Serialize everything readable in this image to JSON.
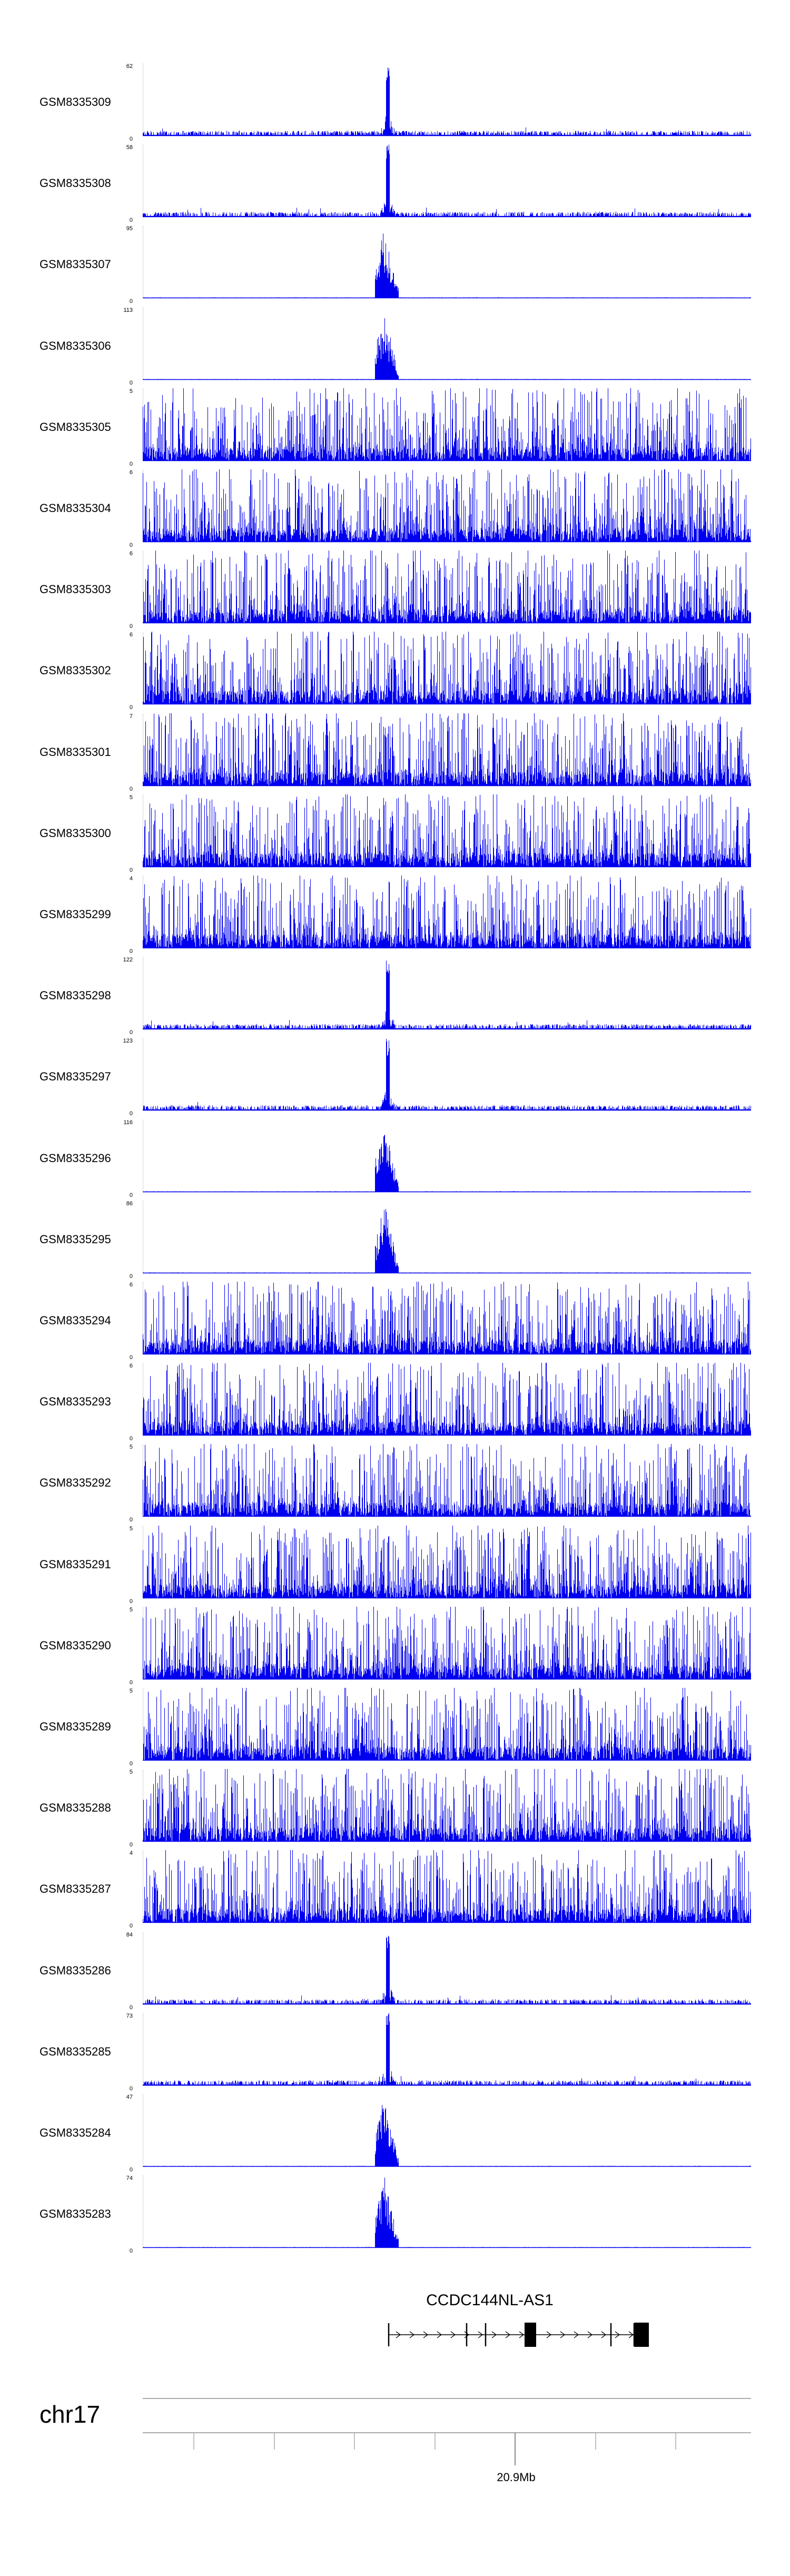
{
  "chart_data": {
    "type": "area",
    "title": "",
    "chromosome": "chr17",
    "xtick_labels": [
      "20.9Mb"
    ],
    "gene": {
      "name": "CCDC144NL-AS1",
      "strand": "+"
    },
    "tracks": [
      {
        "name": "GSM8335309",
        "ymax": "62",
        "ymin": "0",
        "pattern": "peak"
      },
      {
        "name": "GSM8335308",
        "ymax": "58",
        "ymin": "0",
        "pattern": "peak"
      },
      {
        "name": "GSM8335307",
        "ymax": "95",
        "ymin": "0",
        "pattern": "burst"
      },
      {
        "name": "GSM8335306",
        "ymax": "113",
        "ymin": "0",
        "pattern": "burst"
      },
      {
        "name": "GSM8335305",
        "ymax": "5",
        "ymin": "0",
        "pattern": "noise"
      },
      {
        "name": "GSM8335304",
        "ymax": "6",
        "ymin": "0",
        "pattern": "noise"
      },
      {
        "name": "GSM8335303",
        "ymax": "6",
        "ymin": "0",
        "pattern": "noise"
      },
      {
        "name": "GSM8335302",
        "ymax": "6",
        "ymin": "0",
        "pattern": "noise"
      },
      {
        "name": "GSM8335301",
        "ymax": "7",
        "ymin": "0",
        "pattern": "noise"
      },
      {
        "name": "GSM8335300",
        "ymax": "5",
        "ymin": "0",
        "pattern": "noise"
      },
      {
        "name": "GSM8335299",
        "ymax": "4",
        "ymin": "0",
        "pattern": "noise"
      },
      {
        "name": "GSM8335298",
        "ymax": "122",
        "ymin": "0",
        "pattern": "peak"
      },
      {
        "name": "GSM8335297",
        "ymax": "123",
        "ymin": "0",
        "pattern": "peak"
      },
      {
        "name": "GSM8335296",
        "ymax": "116",
        "ymin": "0",
        "pattern": "burst"
      },
      {
        "name": "GSM8335295",
        "ymax": "86",
        "ymin": "0",
        "pattern": "burst"
      },
      {
        "name": "GSM8335294",
        "ymax": "6",
        "ymin": "0",
        "pattern": "noise"
      },
      {
        "name": "GSM8335293",
        "ymax": "6",
        "ymin": "0",
        "pattern": "noise"
      },
      {
        "name": "GSM8335292",
        "ymax": "5",
        "ymin": "0",
        "pattern": "noise"
      },
      {
        "name": "GSM8335291",
        "ymax": "5",
        "ymin": "0",
        "pattern": "noise"
      },
      {
        "name": "GSM8335290",
        "ymax": "5",
        "ymin": "0",
        "pattern": "noise"
      },
      {
        "name": "GSM8335289",
        "ymax": "5",
        "ymin": "0",
        "pattern": "noise"
      },
      {
        "name": "GSM8335288",
        "ymax": "5",
        "ymin": "0",
        "pattern": "noise"
      },
      {
        "name": "GSM8335287",
        "ymax": "4",
        "ymin": "0",
        "pattern": "noise"
      },
      {
        "name": "GSM8335286",
        "ymax": "84",
        "ymin": "0",
        "pattern": "peak"
      },
      {
        "name": "GSM8335285",
        "ymax": "73",
        "ymin": "0",
        "pattern": "peak"
      },
      {
        "name": "GSM8335284",
        "ymax": "47",
        "ymin": "0",
        "pattern": "burst"
      },
      {
        "name": "GSM8335283",
        "ymax": "74",
        "ymin": "0",
        "pattern": "burst"
      }
    ]
  },
  "colors": {
    "signal": "#0000ee",
    "axis": "#aaaaaa",
    "gene": "#000000"
  }
}
